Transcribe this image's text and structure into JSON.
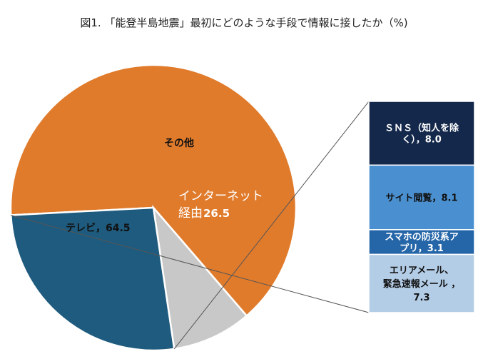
{
  "chart_data": {
    "type": "pie",
    "title": "図1. 「能登半島地震」最初にどのような手段で情報に接したか（%)",
    "slices": [
      {
        "label": "テレビ",
        "value": 64.5,
        "color": "#E07B2C"
      },
      {
        "label": "その他",
        "value": 9.0,
        "color": "#C8C8C8"
      },
      {
        "label": "インターネット経由",
        "value": 26.5,
        "color": "#1F5B7E"
      }
    ],
    "slice_texts": {
      "tv": "テレビ，64.5",
      "other": "その他",
      "internet_line1": "インターネット",
      "internet_line2": "経由",
      "internet_value": "26.5"
    },
    "breakdown": [
      {
        "lines": [
          "ＳＮＳ（知人を除",
          "く），8.0"
        ],
        "value": 8.0,
        "color": "#14284B",
        "text_color": "#ffffff"
      },
      {
        "lines": [
          "サイト閲覧，8.1"
        ],
        "value": 8.1,
        "color": "#4A90D0",
        "text_color": "#111111"
      },
      {
        "lines": [
          "スマホの防災系ア",
          "プリ，3.1"
        ],
        "value": 3.1,
        "color": "#2566A8",
        "text_color": "#ffffff"
      },
      {
        "lines": [
          "エリアメール、",
          "緊急速報メール ，",
          "7.3"
        ],
        "value": 7.3,
        "color": "#B4CDE6",
        "text_color": "#111111"
      }
    ]
  }
}
